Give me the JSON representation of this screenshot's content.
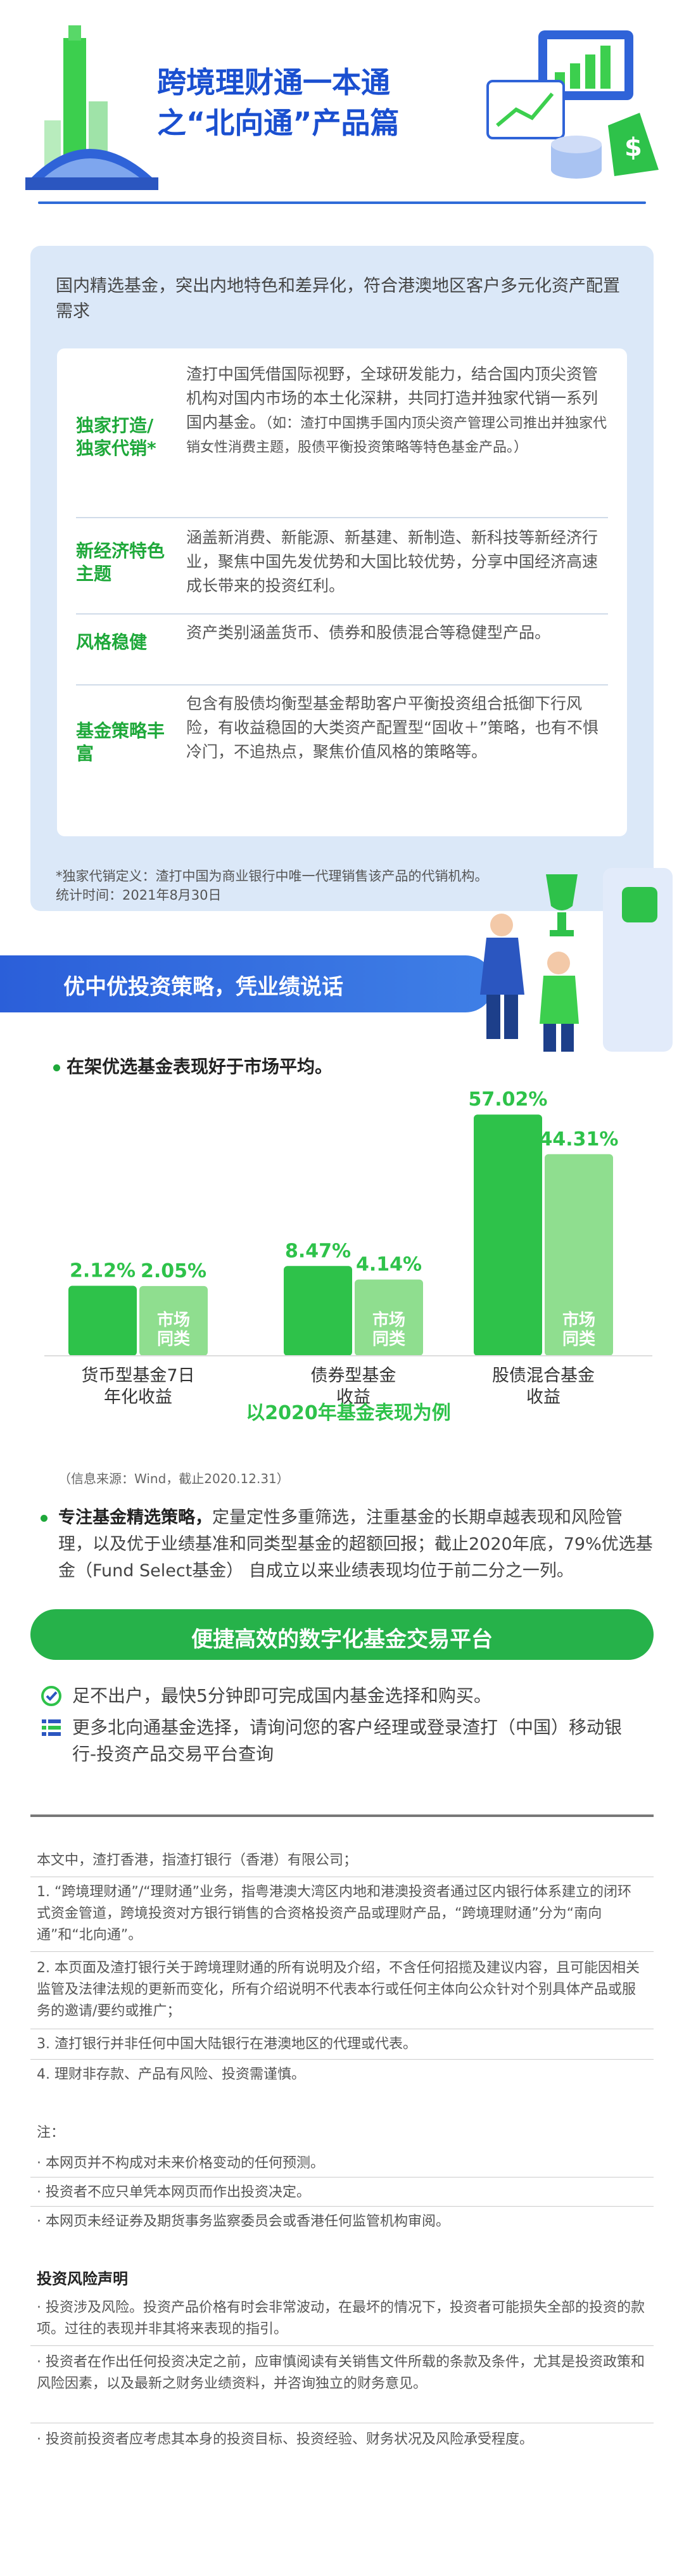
{
  "header": {
    "title_line1": "跨境理财通一本通",
    "title_line2": "之“北向通”产品篇"
  },
  "intro": {
    "text": "国内精选基金，突出内地特色和差异化，符合港澳地区客户多元化资产配置需求",
    "cards": [
      {
        "tag": "独家打造/独家代销*",
        "text": "渣打中国凭借国际视野，全球研发能力，结合国内顶尖资管机构对国内市场的本土化深耕，共同打造并独家代销一系列国内基金。",
        "note": "（如：渣打中国携手国内顶尖资产管理公司推出并独家代销女性消费主题，股债平衡投资策略等特色基金产品。）"
      },
      {
        "tag": "新经济特色主题",
        "text": "涵盖新消费、新能源、新基建、新制造、新科技等新经济行业，聚焦中国先发优势和大国比较优势，分享中国经济高速成长带来的投资红利。",
        "note": ""
      },
      {
        "tag": "风格稳健",
        "text": "资产类别涵盖货币、债券和股债混合等稳健型产品。",
        "note": ""
      },
      {
        "tag": "基金策略丰富",
        "text": "包含有股债均衡型基金帮助客户平衡投资组合抵御下行风险，有收益稳固的大类资产配置型“固收＋”策略，也有不惧冷门，不追热点，聚焦价值风格的策略等。",
        "note": ""
      }
    ],
    "footnote": "*独家代销定义：渣打中国为商业银行中唯一代理销售该产品的代销机构。",
    "stat_time": "统计时间：2021年8月30日"
  },
  "section1": {
    "banner": "优中优投资策略，凭业绩说话",
    "bullet": "在架优选基金表现好于市场平均。"
  },
  "chart_data": {
    "type": "bar",
    "categories": [
      "货币型基金7日年化收益",
      "债券型基金收益",
      "股债混合基金收益"
    ],
    "series": [
      {
        "name": "",
        "values": [
          2.12,
          8.47,
          57.02
        ]
      },
      {
        "name": "市场同类",
        "values": [
          2.05,
          4.14,
          44.31
        ]
      }
    ],
    "value_labels": [
      [
        "2.12%",
        "2.05%"
      ],
      [
        "8.47%",
        "4.14%"
      ],
      [
        "57.02%",
        "44.31%"
      ]
    ],
    "category_lines": [
      [
        "货币型基金7日",
        "年化收益"
      ],
      [
        "债券型基金",
        "收益"
      ],
      [
        "股债混合基金",
        "收益"
      ]
    ],
    "bar_label_lines": [
      "市场",
      "同类"
    ],
    "subtitle": "以2020年基金表现为例",
    "colors": {
      "primary": "#2ec24a",
      "secondary": "#8fde8f"
    }
  },
  "source": "（信息来源：Wind，截止2020.12.31）",
  "strategy": {
    "bold": "专注基金精选策略，",
    "text": "定量定性多重筛选，注重基金的长期卓越表现和风险管理，以及优于业绩基准和同类型基金的超额回报；截止2020年底，79%优选基金（Fund Select基金） 自成立以来业绩表现均位于前二分之一列。"
  },
  "section2": {
    "banner": "便捷高效的数字化基金交易平台",
    "features": [
      {
        "icon": "check-circle-icon",
        "text": "足不出户，最快5分钟即可完成国内基金选择和购买。"
      },
      {
        "icon": "list-icon",
        "text": "更多北向通基金选择，请询问您的客户经理或登录渣打（中国）移动银行-投资产品交易平台查询"
      }
    ]
  },
  "disclaimer": {
    "intro": "本文中，渣打香港，指渣打银行（香港）有限公司；",
    "items": [
      "1. “跨境理财通”/“理财通”业务，指粤港澳大湾区内地和港澳投资者通过区内银行体系建立的闭环式资金管道，跨境投资对方银行销售的合资格投资产品或理财产品，“跨境理财通”分为“南向通”和“北向通”。",
      "2. 本页面及渣打银行关于跨境理财通的所有说明及介绍，不含任何招揽及建议内容，且可能因相关监管及法律法规的更新而变化，所有介绍说明不代表本行或任何主体向公众针对个别具体产品或服务的邀请/要约或推广；",
      "3. 渣打银行并非任何中国大陆银行在港澳地区的代理或代表。",
      "4. 理财非存款、产品有风险、投资需谨慎。"
    ],
    "note_title": "注：",
    "notes": [
      "· 本网页并不构成对未来价格变动的任何预测。",
      "· 投资者不应只单凭本网页而作出投资决定。",
      "· 本网页未经证券及期货事务监察委员会或香港任何监管机构审阅。"
    ],
    "risk_title": "投资风险声明",
    "risks": [
      "· 投资涉及风险。投资产品价格有时会非常波动，在最坏的情况下，投资者可能损失全部的投资的款项。过往的表现并非其将来表现的指引。",
      "· 投资者在作出任何投资决定之前，应审慎阅读有关销售文件所载的条款及条件，尤其是投资政策和风险因素，以及最新之财务业绩资料，并咨询独立的财务意见。",
      "· 投资前投资者应考虑其本身的投资目标、投资经验、财务状况及风险承受程度。"
    ]
  }
}
